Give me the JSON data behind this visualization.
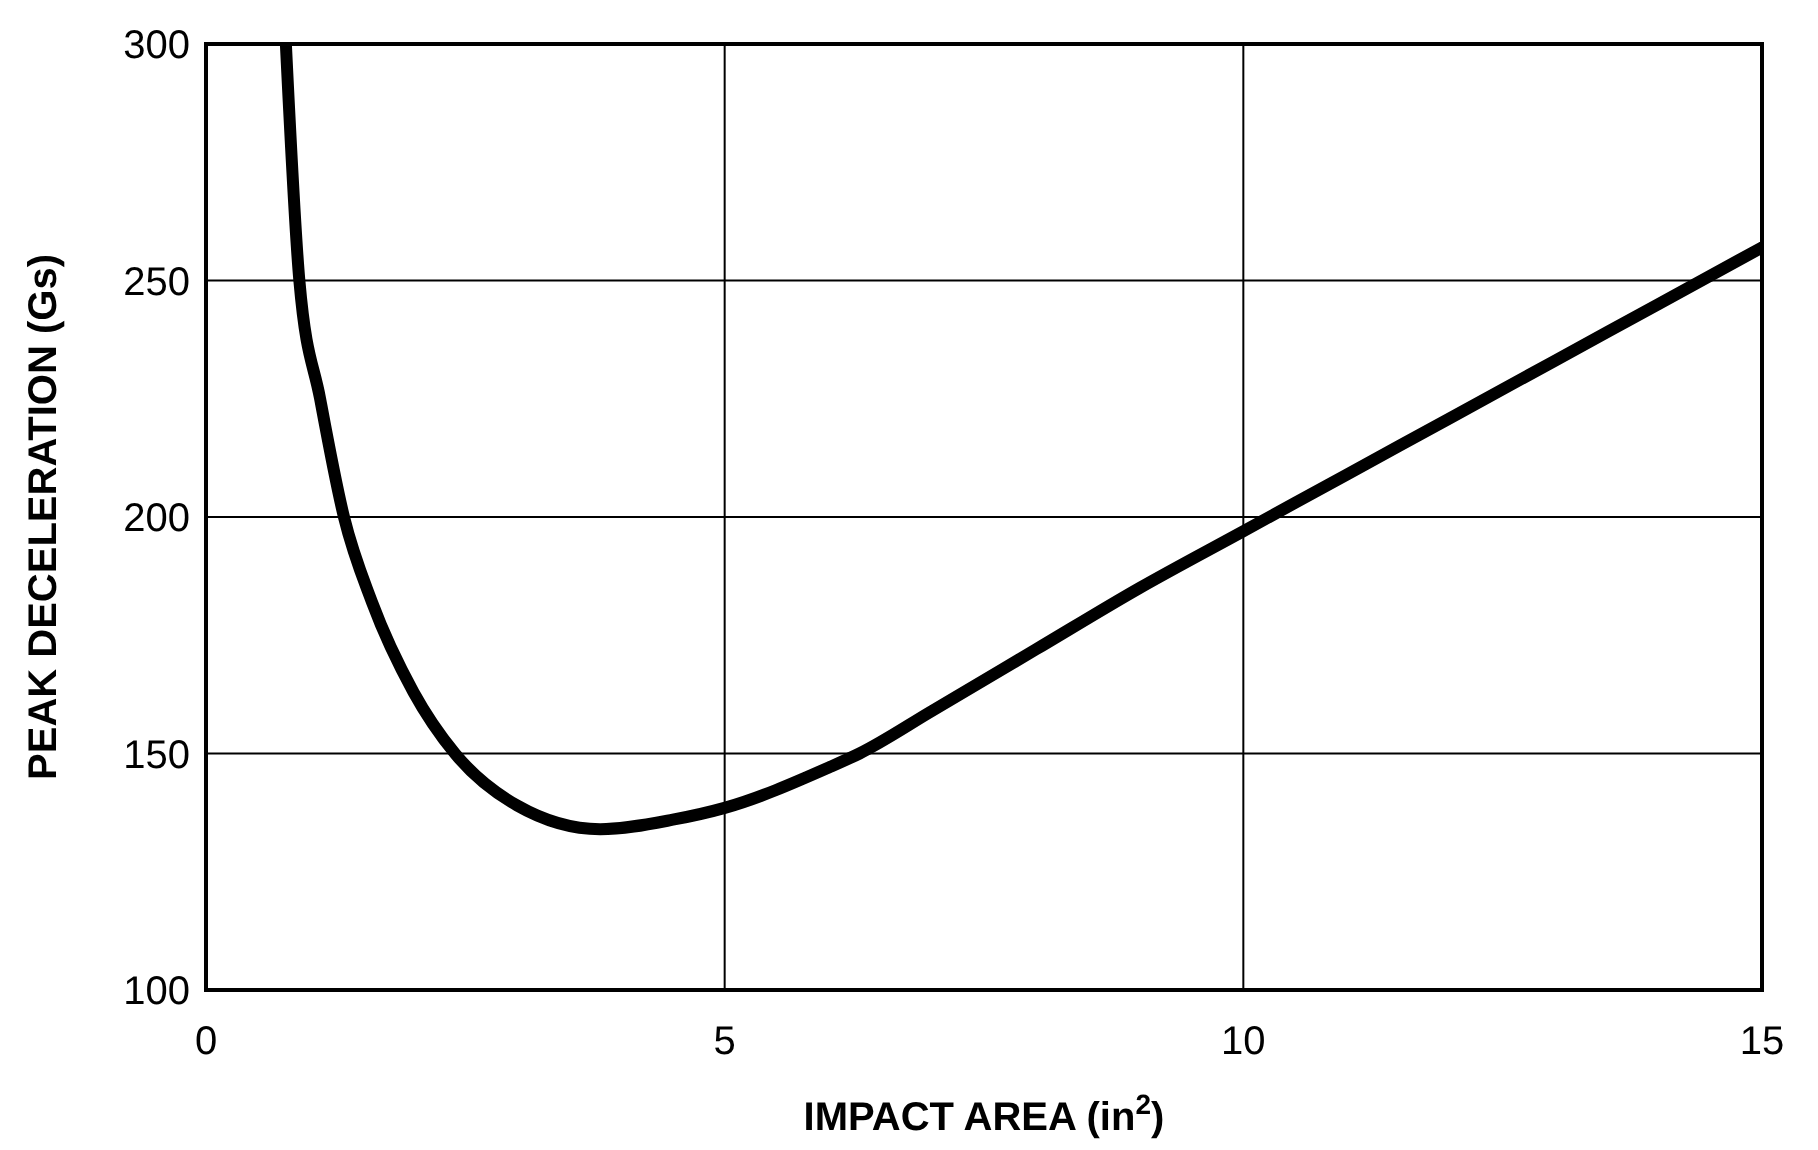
{
  "chart_data": {
    "type": "line",
    "xlabel": "IMPACT AREA (in$^{2}$)",
    "ylabel": "PEAK DECELERATION (Gs)",
    "x": [
      0.77,
      0.9,
      1.1,
      1.33,
      1.6,
      2.0,
      2.4,
      3.0,
      3.8,
      4.5,
      5,
      6,
      6.3,
      7,
      8,
      9,
      10,
      11,
      12,
      13,
      14,
      15
    ],
    "series": [
      {
        "color": "#000000",
        "values": [
          300,
          250,
          225,
          200,
          182,
          163,
          150,
          139,
          134,
          136,
          138.5,
          147,
          150,
          159,
          172,
          185,
          197,
          209,
          221,
          233,
          245,
          257
        ]
      }
    ],
    "xlim": [
      0,
      15
    ],
    "ylim": [
      100,
      300
    ],
    "xticks": [
      0,
      5,
      10,
      15
    ],
    "yticks": [
      100,
      150,
      200,
      250,
      300
    ],
    "grid": true,
    "marker": "none",
    "line_style": "solid"
  }
}
